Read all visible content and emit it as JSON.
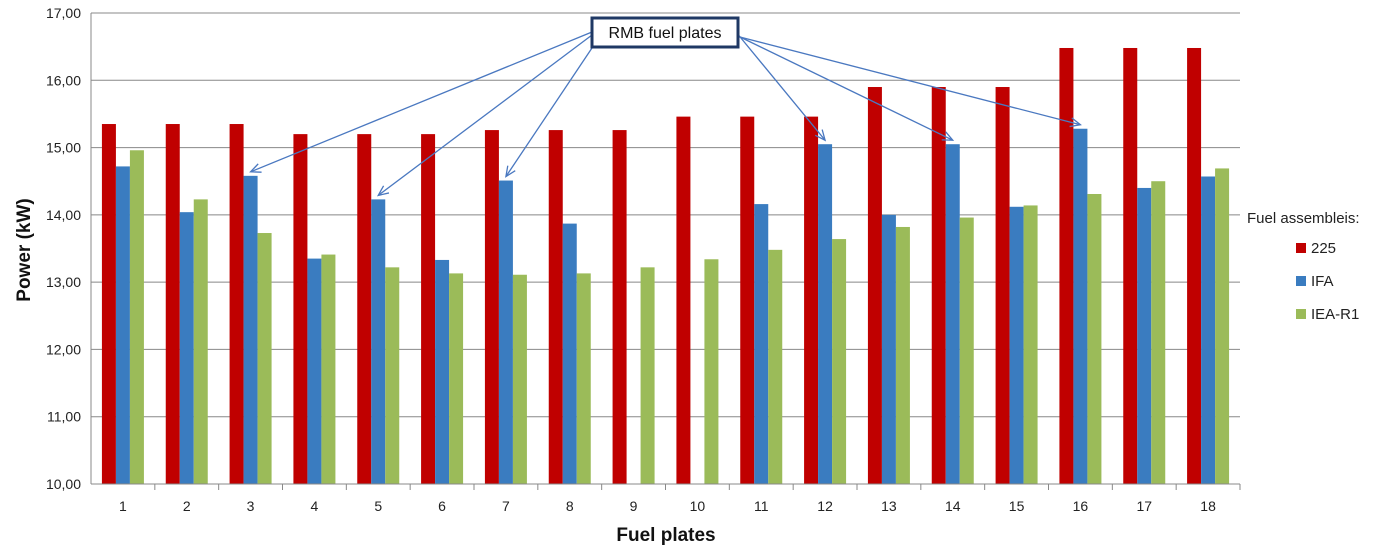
{
  "chart_data": {
    "type": "bar",
    "xlabel": "Fuel plates",
    "ylabel": "Power (kW)",
    "ylim": [
      10,
      17
    ],
    "yticks": [
      "10,00",
      "11,00",
      "12,00",
      "13,00",
      "14,00",
      "15,00",
      "16,00",
      "17,00"
    ],
    "grid": "horizontal",
    "legend_title": "Fuel assembleis:",
    "legend_position": "right",
    "categories": [
      "1",
      "2",
      "3",
      "4",
      "5",
      "6",
      "7",
      "8",
      "9",
      "10",
      "11",
      "12",
      "13",
      "14",
      "15",
      "16",
      "17",
      "18"
    ],
    "series": [
      {
        "name": "225",
        "color": "#c00000",
        "values": [
          15.35,
          15.35,
          15.35,
          15.2,
          15.2,
          15.2,
          15.26,
          15.26,
          15.26,
          15.46,
          15.46,
          15.46,
          15.9,
          15.9,
          15.9,
          16.48,
          16.48,
          16.48
        ]
      },
      {
        "name": "IFA",
        "color": "#3a7cc0",
        "values": [
          14.72,
          14.04,
          14.58,
          13.35,
          14.23,
          13.33,
          14.51,
          13.87,
          null,
          null,
          14.16,
          15.05,
          14.0,
          15.05,
          14.12,
          15.28,
          14.4,
          14.57
        ]
      },
      {
        "name": "IEA-R1",
        "color": "#9bbb59",
        "values": [
          14.96,
          14.23,
          13.73,
          13.41,
          13.22,
          13.13,
          13.11,
          13.13,
          13.22,
          13.34,
          13.48,
          13.64,
          13.82,
          13.96,
          14.14,
          14.31,
          14.5,
          14.69
        ]
      }
    ],
    "annotation": {
      "text": "RMB fuel plates",
      "targets": [
        {
          "category": "3",
          "series": "IFA"
        },
        {
          "category": "5",
          "series": "IFA"
        },
        {
          "category": "7",
          "series": "IFA"
        },
        {
          "category": "12",
          "series": "IFA"
        },
        {
          "category": "14",
          "series": "IFA"
        },
        {
          "category": "16",
          "series": "IFA"
        }
      ]
    }
  }
}
